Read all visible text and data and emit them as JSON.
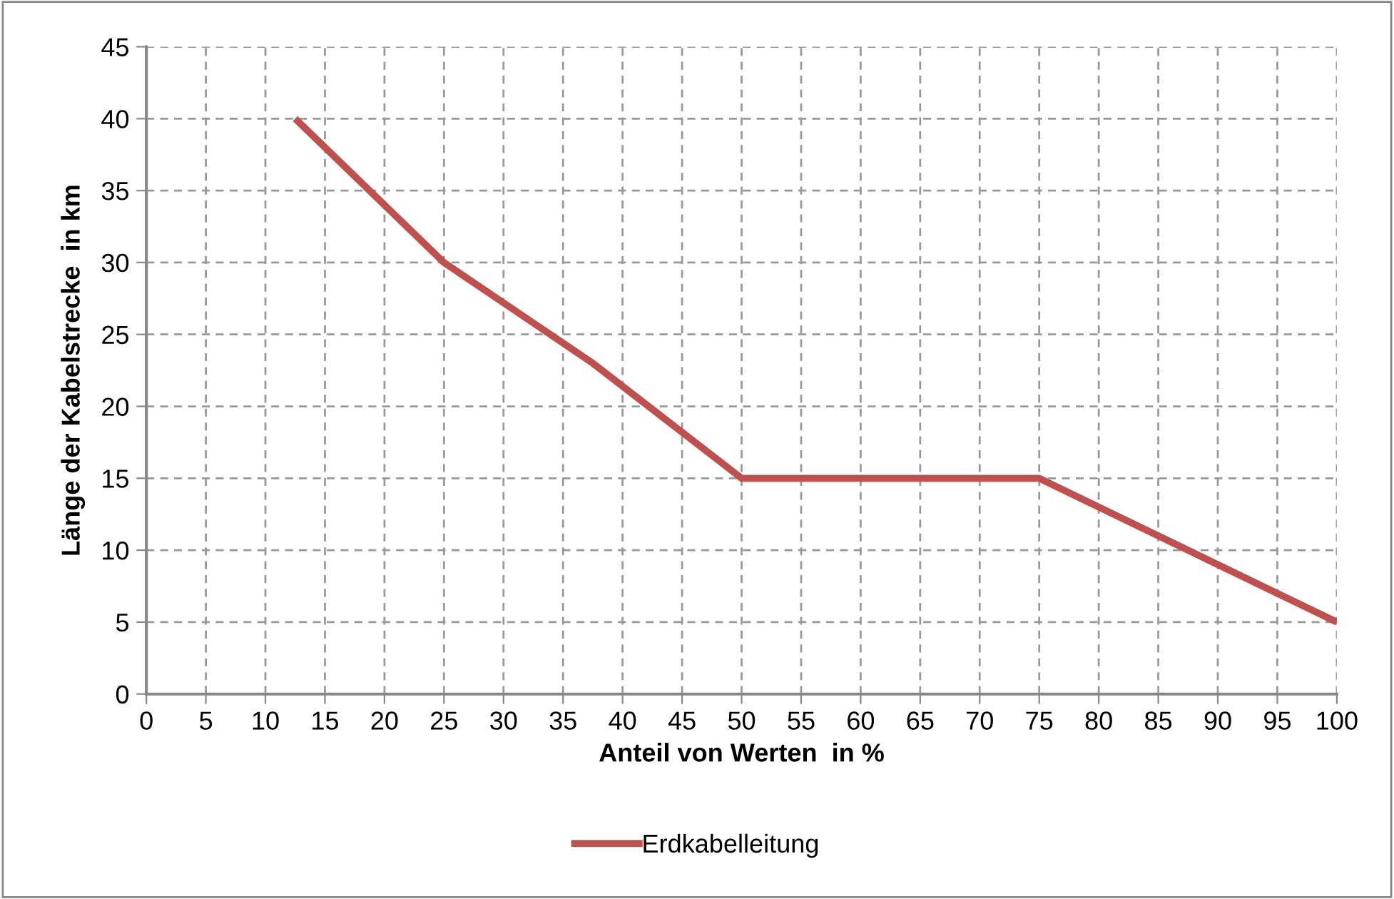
{
  "chart_data": {
    "type": "line",
    "xlabel": "Anteil von Werten  in %",
    "ylabel": "Länge der Kabelstrecke  in km",
    "x": [
      12.5,
      25,
      37.5,
      50,
      75,
      100
    ],
    "series": [
      {
        "name": "Erdkabelleitung",
        "color": "#c0504d",
        "values": [
          40,
          30,
          23,
          15,
          15,
          5
        ]
      }
    ],
    "xlim": [
      0,
      100
    ],
    "xticks": [
      0,
      5,
      10,
      15,
      20,
      25,
      30,
      35,
      40,
      45,
      50,
      55,
      60,
      65,
      70,
      75,
      80,
      85,
      90,
      95,
      100
    ],
    "ylim": [
      0,
      45
    ],
    "yticks": [
      0,
      5,
      10,
      15,
      20,
      25,
      30,
      35,
      40,
      45
    ],
    "grid": true,
    "legend": "bottom",
    "marker": "none",
    "line_style": "solid"
  }
}
